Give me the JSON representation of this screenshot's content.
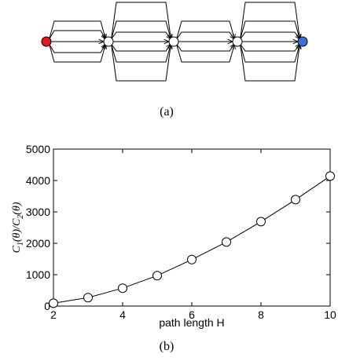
{
  "panel_a": {
    "caption": "(a)",
    "colors": {
      "source": "#e8141b",
      "sink": "#3a6fe0",
      "inner": "#ffffff",
      "stroke": "#000000"
    }
  },
  "panel_b": {
    "caption": "(b)"
  },
  "chart_data": {
    "type": "line",
    "x": [
      2,
      3,
      4,
      5,
      6,
      7,
      8,
      9,
      10
    ],
    "series": [
      {
        "values": [
          90,
          270,
          570,
          970,
          1480,
          2040,
          2690,
          3390,
          4140
        ],
        "marker": "circle-open",
        "color": "#000000"
      }
    ],
    "xlabel": "path length H",
    "ylabel_main": "C",
    "ylabel_sub1": "1",
    "ylabel_mid": "(θ)/C",
    "ylabel_sub2": "2",
    "ylabel_end": "(θ)",
    "xlim": [
      2,
      10
    ],
    "ylim": [
      0,
      5000
    ],
    "xticks": [
      "2",
      "4",
      "6",
      "8",
      "10"
    ],
    "yticks": [
      "0",
      "1000",
      "2000",
      "3000",
      "4000",
      "5000"
    ],
    "grid": false
  }
}
